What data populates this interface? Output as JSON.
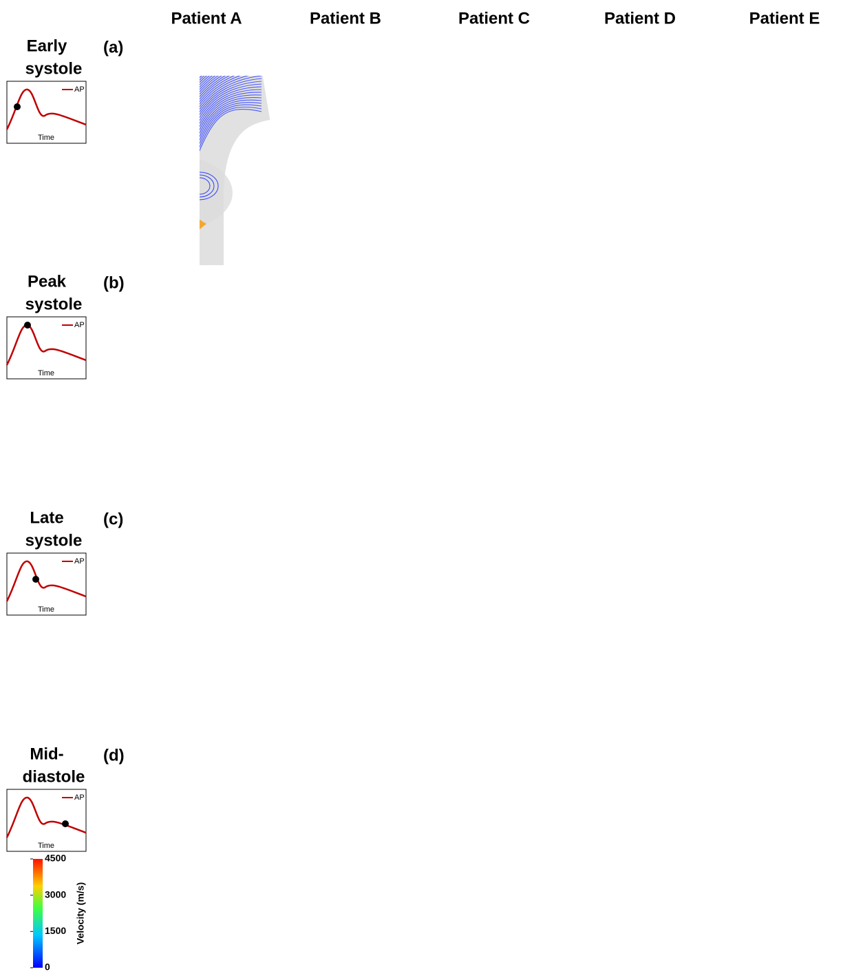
{
  "columns": [
    "Patient A",
    "Patient B",
    "Patient C",
    "Patient D",
    "Patient E"
  ],
  "rows": [
    {
      "label": [
        "Early",
        "systole"
      ],
      "tag": "(a)"
    },
    {
      "label": [
        "Peak",
        "systole"
      ],
      "tag": "(b)"
    },
    {
      "label": [
        "Late",
        "systole"
      ],
      "tag": "(c)"
    },
    {
      "label": [
        "Mid-",
        "diastole"
      ],
      "tag": "(d)"
    }
  ],
  "waveform": {
    "legend": "AP",
    "xlabel": "Time"
  },
  "colorbar": {
    "label": "Velocity (m/s)",
    "lim": [
      0,
      4500
    ],
    "ticks": [
      0,
      1500,
      3000,
      4500
    ]
  }
}
